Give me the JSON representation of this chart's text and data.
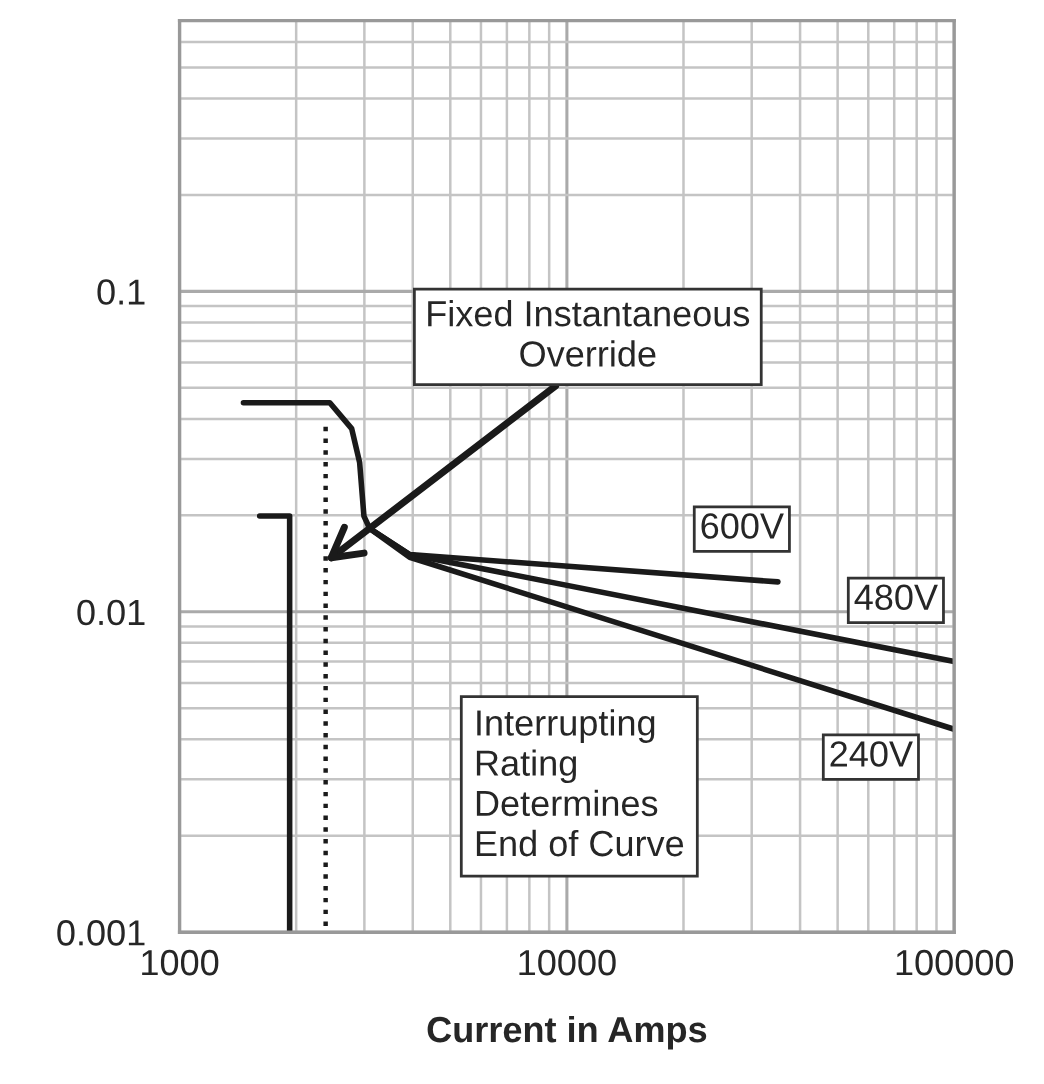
{
  "chart_data": {
    "type": "line",
    "xlabel": "Current in Amps",
    "log": "xy",
    "grid": true,
    "xlim": [
      1000,
      100000
    ],
    "ylim": [
      0.001,
      0.7
    ],
    "xticks": [
      1000,
      10000,
      100000
    ],
    "yticks": [
      0.001,
      0.01,
      0.1
    ],
    "series": [
      {
        "name": "600V",
        "color": "#1a1a1a",
        "x": [
          1462,
          2443,
          2782,
          2917,
          2992,
          3096,
          3927,
          35070
        ],
        "values": [
          0.0449,
          0.0449,
          0.0373,
          0.0292,
          0.0199,
          0.0182,
          0.0151,
          0.0124
        ]
      },
      {
        "name": "480V",
        "color": "#1a1a1a",
        "x": [
          3096,
          3927,
          100000
        ],
        "values": [
          0.0182,
          0.0151,
          0.007
        ]
      },
      {
        "name": "240V",
        "color": "#1a1a1a",
        "x": [
          3096,
          3927,
          100000
        ],
        "values": [
          0.0182,
          0.0148,
          0.0043
        ]
      },
      {
        "color": "#1a1a1a",
        "x": [
          1610,
          1924,
          1924
        ],
        "values": [
          0.0199,
          0.0199,
          0.001
        ]
      },
      {
        "color": "#1a1a1a",
        "line_style": "dotted",
        "x": [
          2383,
          2383
        ],
        "values": [
          0.0378,
          0.001
        ]
      }
    ],
    "annotations": [
      {
        "text": "Fixed Instantaneous\nOverride",
        "x": 2383,
        "y": 0.0143
      },
      "Interrupting\nRating\nDetermines\nEnd of Curve"
    ]
  }
}
